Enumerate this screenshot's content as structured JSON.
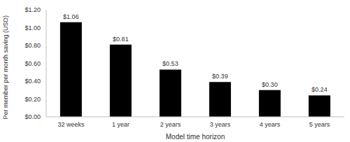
{
  "chart_data": {
    "type": "bar",
    "x_label": "Model time horizon",
    "y_label": "Per member per month saving (USD)",
    "categories": [
      "32 weeks",
      "1 year",
      "2 years",
      "3 years",
      "4 years",
      "5 years"
    ],
    "values": [
      1.06,
      0.81,
      0.53,
      0.39,
      0.3,
      0.24
    ],
    "value_labels": [
      "$1.06",
      "$0.81",
      "$0.53",
      "$0.39",
      "$0.30",
      "$0.24"
    ],
    "color": "#000000",
    "ylim": [
      0,
      1.2
    ],
    "yticks": [
      {
        "value": 0,
        "label": "$0.00"
      },
      {
        "value": 0.2,
        "label": "$0.20"
      },
      {
        "value": 0.4,
        "label": "$0.40"
      },
      {
        "value": 0.6,
        "label": "$0.60"
      },
      {
        "value": 0.8,
        "label": "$0.80"
      },
      {
        "value": 1.0,
        "label": "$1.00"
      },
      {
        "value": 1.2,
        "label": "$1.20"
      }
    ],
    "grid": false,
    "data_labels": true
  }
}
